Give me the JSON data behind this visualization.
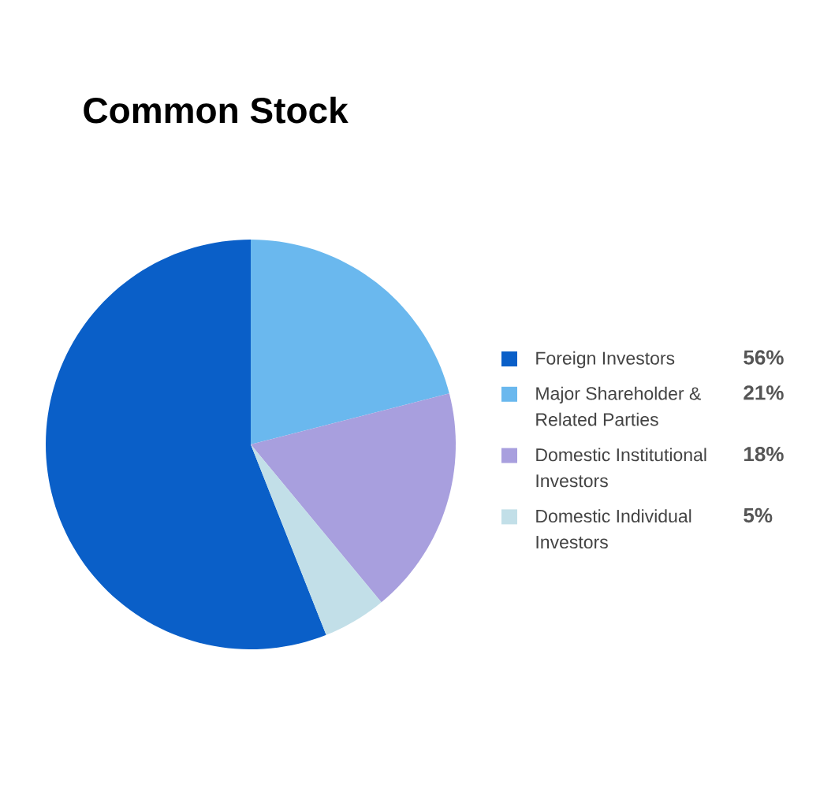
{
  "chart_data": {
    "type": "pie",
    "title": "Common Stock",
    "categories": [
      "Foreign Investors",
      "Major Shareholder & Related Parties",
      "Domestic Institutional Investors",
      "Domestic Individual Investors"
    ],
    "values": [
      56,
      21,
      18,
      5
    ],
    "colors": [
      "#0a5fc8",
      "#6ab8ee",
      "#a89fde",
      "#c2dfe8"
    ],
    "value_labels": [
      "56%",
      "21%",
      "18%",
      "5%"
    ],
    "legend": "right"
  }
}
